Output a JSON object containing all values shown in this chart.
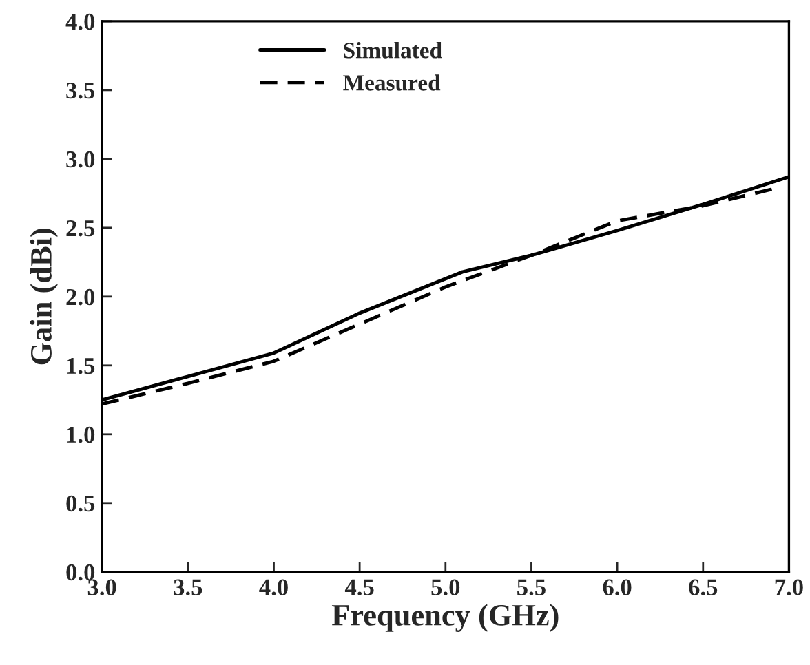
{
  "chart_data": {
    "type": "line",
    "xlabel": "Frequency (GHz)",
    "ylabel": "Gain (dBi)",
    "xlim": [
      3.0,
      7.0
    ],
    "xticks": [
      {
        "value": 3.0,
        "label": "3.0"
      },
      {
        "value": 3.5,
        "label": "3.5"
      },
      {
        "value": 4.0,
        "label": "4.0"
      },
      {
        "value": 4.5,
        "label": "4.5"
      },
      {
        "value": 5.0,
        "label": "5.0"
      },
      {
        "value": 5.5,
        "label": "5.5"
      },
      {
        "value": 6.0,
        "label": "6.0"
      },
      {
        "value": 6.5,
        "label": "6.5"
      },
      {
        "value": 7.0,
        "label": "7.0"
      }
    ],
    "ylim": [
      0.0,
      4.0
    ],
    "yticks": [
      {
        "value": 0.0,
        "label": "0.0"
      },
      {
        "value": 0.5,
        "label": "0.5"
      },
      {
        "value": 1.0,
        "label": "1.0"
      },
      {
        "value": 1.5,
        "label": "1.5"
      },
      {
        "value": 2.0,
        "label": "2.0"
      },
      {
        "value": 2.5,
        "label": "2.5"
      },
      {
        "value": 3.0,
        "label": "3.0"
      },
      {
        "value": 3.5,
        "label": "3.5"
      },
      {
        "value": 4.0,
        "label": "4.0"
      }
    ],
    "legend": "top left",
    "marker": "none",
    "series": [
      {
        "name": "Simulated",
        "color": "#000000",
        "line_style": "solid",
        "x": [
          3.0,
          3.5,
          4.0,
          4.5,
          5.1,
          5.5,
          6.0,
          6.5,
          7.0
        ],
        "values": [
          1.25,
          1.42,
          1.59,
          1.88,
          2.18,
          2.3,
          2.48,
          2.67,
          2.87
        ]
      },
      {
        "name": "Measured",
        "color": "#000000",
        "line_style": "dashed",
        "x": [
          3.0,
          3.5,
          4.0,
          4.5,
          5.0,
          5.5,
          6.0,
          6.5,
          6.9
        ],
        "values": [
          1.22,
          1.37,
          1.53,
          1.8,
          2.07,
          2.3,
          2.55,
          2.66,
          2.78
        ]
      }
    ]
  }
}
